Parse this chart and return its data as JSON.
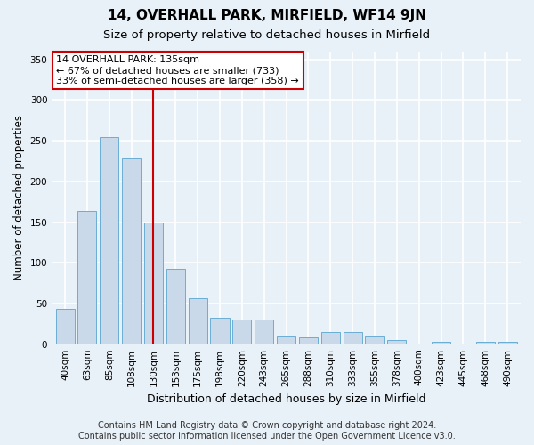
{
  "title": "14, OVERHALL PARK, MIRFIELD, WF14 9JN",
  "subtitle": "Size of property relative to detached houses in Mirfield",
  "xlabel": "Distribution of detached houses by size in Mirfield",
  "ylabel": "Number of detached properties",
  "categories": [
    "40sqm",
    "63sqm",
    "85sqm",
    "108sqm",
    "130sqm",
    "153sqm",
    "175sqm",
    "198sqm",
    "220sqm",
    "243sqm",
    "265sqm",
    "288sqm",
    "310sqm",
    "333sqm",
    "355sqm",
    "378sqm",
    "400sqm",
    "423sqm",
    "445sqm",
    "468sqm",
    "490sqm"
  ],
  "values": [
    43,
    164,
    255,
    228,
    150,
    93,
    57,
    33,
    30,
    30,
    10,
    8,
    15,
    15,
    10,
    5,
    0,
    3,
    0,
    3,
    3
  ],
  "bar_color": "#c9d9ea",
  "bar_edge_color": "#6aadd5",
  "background_color": "#e8f0f8",
  "grid_color": "#ffffff",
  "vline_x": 4.0,
  "vline_color": "#cc0000",
  "annotation_text": "14 OVERHALL PARK: 135sqm\n← 67% of detached houses are smaller (733)\n33% of semi-detached houses are larger (358) →",
  "annotation_box_facecolor": "#ffffff",
  "annotation_box_edgecolor": "#cc0000",
  "ylim": [
    0,
    360
  ],
  "yticks": [
    0,
    50,
    100,
    150,
    200,
    250,
    300,
    350
  ],
  "footer_text": "Contains HM Land Registry data © Crown copyright and database right 2024.\nContains public sector information licensed under the Open Government Licence v3.0.",
  "title_fontsize": 11,
  "subtitle_fontsize": 9.5,
  "xlabel_fontsize": 9,
  "ylabel_fontsize": 8.5,
  "tick_fontsize": 7.5,
  "footer_fontsize": 7,
  "annotation_fontsize": 8
}
